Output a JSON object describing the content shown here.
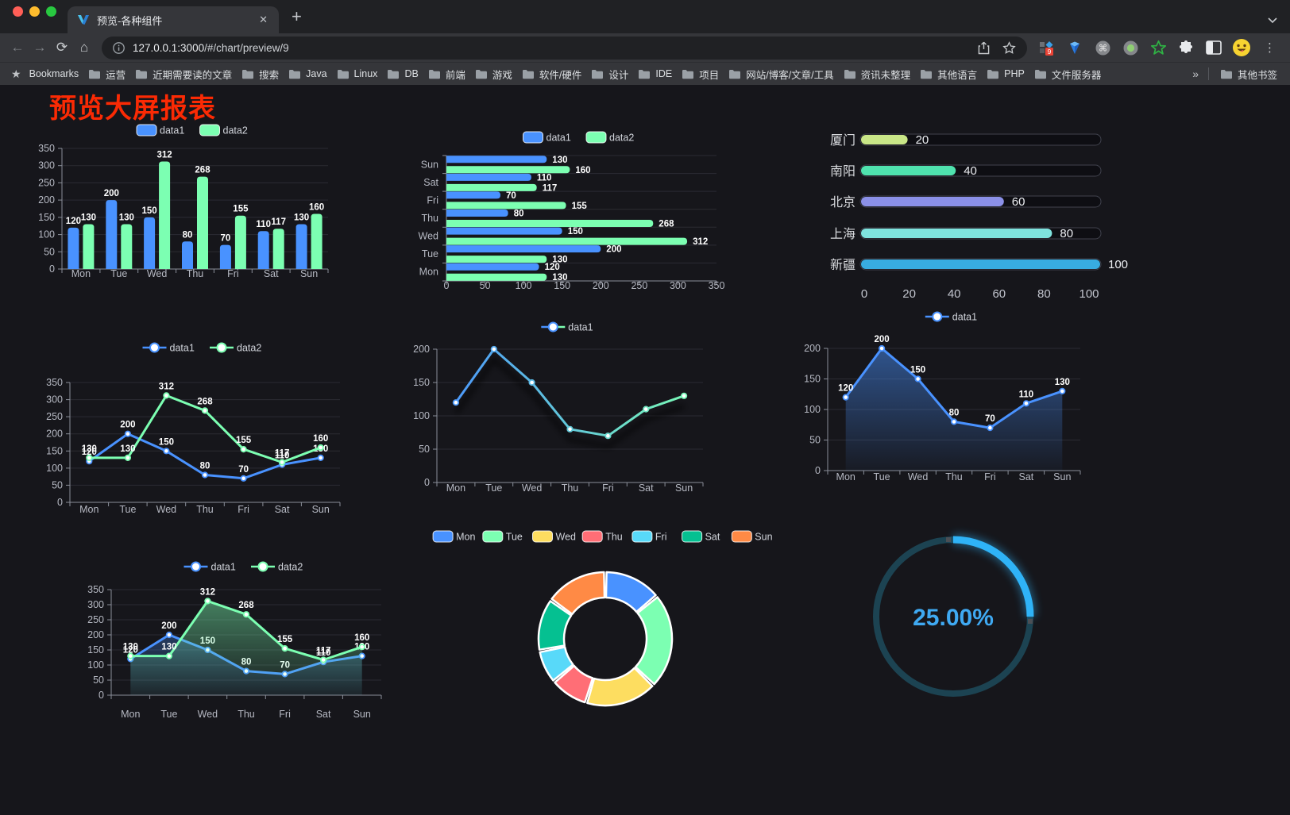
{
  "tab": {
    "title": "预览-各种组件",
    "close_glyph": "✕",
    "new_tab_glyph": "+"
  },
  "toolbar": {
    "url_host": "127.0.0.1:3000",
    "url_path": "/#/chart/preview/9",
    "extension_badge": "9"
  },
  "bookmarks": {
    "root_label": "Bookmarks",
    "items": [
      "运营",
      "近期需要读的文章",
      "搜索",
      "Java",
      "Linux",
      "DB",
      "前端",
      "游戏",
      "软件/硬件",
      "设计",
      "IDE",
      "项目",
      "网站/博客/文章/工具",
      "资讯未整理",
      "其他语言",
      "PHP",
      "文件服务器"
    ],
    "overflow_glyph": "»",
    "other_label": "其他书签"
  },
  "page": {
    "title": "预览大屏报表"
  },
  "chart_data": [
    {
      "type": "bar",
      "categories": [
        "Mon",
        "Tue",
        "Wed",
        "Thu",
        "Fri",
        "Sat",
        "Sun"
      ],
      "series": [
        {
          "name": "data1",
          "color": "#4992ff",
          "values": [
            120,
            200,
            150,
            80,
            70,
            110,
            130
          ]
        },
        {
          "name": "data2",
          "color": "#7cffb2",
          "values": [
            130,
            130,
            312,
            268,
            155,
            117,
            160
          ]
        }
      ],
      "ylim": [
        0,
        350
      ],
      "yticks": [
        0,
        50,
        100,
        150,
        200,
        250,
        300,
        350
      ],
      "labels": true,
      "legend_position": "top"
    },
    {
      "type": "bar-horizontal",
      "categories": [
        "Mon",
        "Tue",
        "Wed",
        "Thu",
        "Fri",
        "Sat",
        "Sun"
      ],
      "series": [
        {
          "name": "data1",
          "color": "#4992ff",
          "values": [
            120,
            200,
            150,
            80,
            70,
            110,
            130
          ]
        },
        {
          "name": "data2",
          "color": "#7cffb2",
          "values": [
            130,
            130,
            312,
            268,
            155,
            117,
            160
          ]
        }
      ],
      "xlim": [
        0,
        350
      ],
      "xticks": [
        0,
        50,
        100,
        150,
        200,
        250,
        300,
        350
      ],
      "labels": true,
      "legend_position": "top"
    },
    {
      "type": "progress-bars",
      "items": [
        {
          "label": "厦门",
          "value": 20,
          "color": "#c9e687"
        },
        {
          "label": "南阳",
          "value": 40,
          "color": "#4fe2ae"
        },
        {
          "label": "北京",
          "value": 60,
          "color": "#8b90e8"
        },
        {
          "label": "上海",
          "value": 80,
          "color": "#7fe3de"
        },
        {
          "label": "新疆",
          "value": 100,
          "color": "#38ace0"
        }
      ],
      "xlim": [
        0,
        100
      ],
      "xticks": [
        0,
        20,
        40,
        60,
        80,
        100
      ]
    },
    {
      "type": "line",
      "categories": [
        "Mon",
        "Tue",
        "Wed",
        "Thu",
        "Fri",
        "Sat",
        "Sun"
      ],
      "series": [
        {
          "name": "data1",
          "color": "#4992ff",
          "values": [
            120,
            200,
            150,
            80,
            70,
            110,
            130
          ]
        },
        {
          "name": "data2",
          "color": "#7cffb2",
          "values": [
            130,
            130,
            312,
            268,
            155,
            117,
            160
          ]
        }
      ],
      "ylim": [
        0,
        350
      ],
      "yticks": [
        0,
        50,
        100,
        150,
        200,
        250,
        300,
        350
      ],
      "labels": true,
      "legend_position": "top"
    },
    {
      "type": "line",
      "categories": [
        "Mon",
        "Tue",
        "Wed",
        "Thu",
        "Fri",
        "Sat",
        "Sun"
      ],
      "series": [
        {
          "name": "data1",
          "gradient": [
            "#4992ff",
            "#7cffb2"
          ],
          "values": [
            120,
            200,
            150,
            80,
            70,
            110,
            130
          ]
        }
      ],
      "ylim": [
        0,
        200
      ],
      "yticks": [
        0,
        50,
        100,
        150,
        200
      ],
      "labels": false,
      "shadow": true,
      "legend_position": "top"
    },
    {
      "type": "line",
      "categories": [
        "Mon",
        "Tue",
        "Wed",
        "Thu",
        "Fri",
        "Sat",
        "Sun"
      ],
      "series": [
        {
          "name": "data1",
          "color": "#4992ff",
          "area": true,
          "values": [
            120,
            200,
            150,
            80,
            70,
            110,
            130
          ]
        }
      ],
      "ylim": [
        0,
        200
      ],
      "yticks": [
        0,
        50,
        100,
        150,
        200
      ],
      "labels": true,
      "legend_position": "top"
    },
    {
      "type": "line",
      "categories": [
        "Mon",
        "Tue",
        "Wed",
        "Thu",
        "Fri",
        "Sat",
        "Sun"
      ],
      "series": [
        {
          "name": "data1",
          "color": "#4992ff",
          "area": true,
          "values": [
            120,
            200,
            150,
            80,
            70,
            110,
            130
          ]
        },
        {
          "name": "data2",
          "color": "#7cffb2",
          "area": true,
          "values": [
            130,
            130,
            312,
            268,
            155,
            117,
            160
          ]
        }
      ],
      "ylim": [
        0,
        350
      ],
      "yticks": [
        0,
        50,
        100,
        150,
        200,
        250,
        300,
        350
      ],
      "labels": true,
      "legend_position": "top"
    },
    {
      "type": "donut",
      "categories": [
        "Mon",
        "Tue",
        "Wed",
        "Thu",
        "Fri",
        "Sat",
        "Sun"
      ],
      "values": [
        120,
        200,
        150,
        80,
        70,
        110,
        130
      ],
      "colors": [
        "#4992ff",
        "#7cffb2",
        "#fddd60",
        "#ff6e76",
        "#58d9f9",
        "#05c091",
        "#ff8a45"
      ],
      "legend_position": "top"
    },
    {
      "type": "ring-progress",
      "value": 25,
      "label": "25.00%",
      "color": "#2FB3F7",
      "track_color": "#1C4352",
      "text_color": "#3FA9F2"
    }
  ]
}
